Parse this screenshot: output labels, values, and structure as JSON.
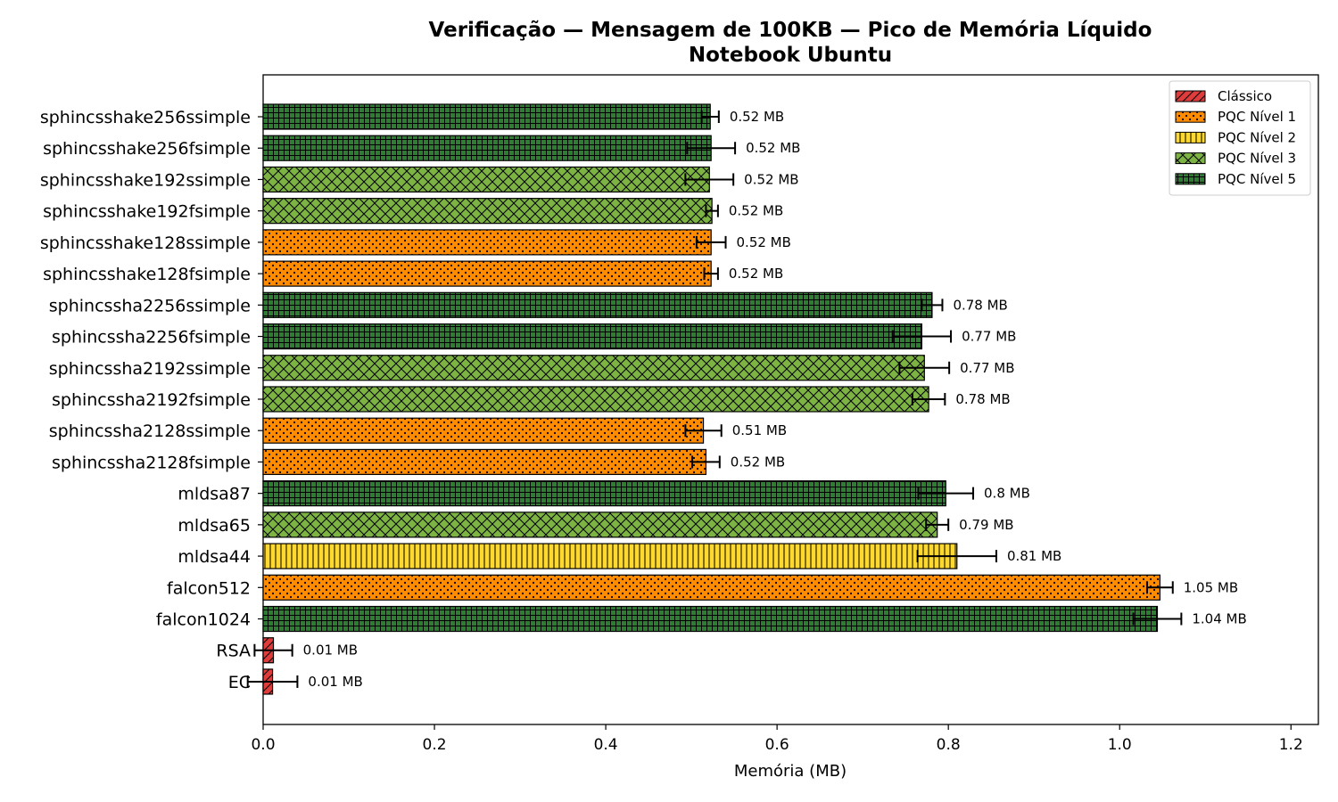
{
  "chart_data": {
    "type": "bar",
    "orientation": "horizontal",
    "title": "Verificação — Mensagem de 100KB — Pico de Memória Líquido",
    "subtitle": "Notebook Ubuntu",
    "xlabel": "Memória (MB)",
    "ylabel": "",
    "xlim": [
      0,
      1.232
    ],
    "xticks": [
      "0.0",
      "0.2",
      "0.4",
      "0.6",
      "0.8",
      "1.0",
      "1.2"
    ],
    "legend_placement": "top-right",
    "grid": false,
    "legend": [
      {
        "key": "classico",
        "label": "Clássico",
        "color": "#e03c3c",
        "pattern": "diagonal-hatch"
      },
      {
        "key": "n1",
        "label": "PQC Nível 1",
        "color": "#ff8c00",
        "pattern": "dots"
      },
      {
        "key": "n2",
        "label": "PQC Nível 2",
        "color": "#ffd92f",
        "pattern": "vertical-lines"
      },
      {
        "key": "n3",
        "label": "PQC Nível 3",
        "color": "#7cb342",
        "pattern": "crosshatch"
      },
      {
        "key": "n5",
        "label": "PQC Nível 5",
        "color": "#2e7d32",
        "pattern": "grid"
      }
    ],
    "bars": [
      {
        "category": "sphincsshake256ssimple",
        "value": 0.522,
        "error": 0.01,
        "level": "n5",
        "label": "0.52 MB"
      },
      {
        "category": "sphincsshake256fsimple",
        "value": 0.523,
        "error": 0.028,
        "level": "n5",
        "label": "0.52 MB"
      },
      {
        "category": "sphincsshake192ssimple",
        "value": 0.521,
        "error": 0.028,
        "level": "n3",
        "label": "0.52 MB"
      },
      {
        "category": "sphincsshake192fsimple",
        "value": 0.524,
        "error": 0.007,
        "level": "n3",
        "label": "0.52 MB"
      },
      {
        "category": "sphincsshake128ssimple",
        "value": 0.523,
        "error": 0.017,
        "level": "n1",
        "label": "0.52 MB"
      },
      {
        "category": "sphincsshake128fsimple",
        "value": 0.523,
        "error": 0.008,
        "level": "n1",
        "label": "0.52 MB"
      },
      {
        "category": "sphincssha2256ssimple",
        "value": 0.781,
        "error": 0.012,
        "level": "n5",
        "label": "0.78 MB"
      },
      {
        "category": "sphincssha2256fsimple",
        "value": 0.769,
        "error": 0.034,
        "level": "n5",
        "label": "0.77 MB"
      },
      {
        "category": "sphincssha2192ssimple",
        "value": 0.772,
        "error": 0.029,
        "level": "n3",
        "label": "0.77 MB"
      },
      {
        "category": "sphincssha2192fsimple",
        "value": 0.777,
        "error": 0.019,
        "level": "n3",
        "label": "0.78 MB"
      },
      {
        "category": "sphincssha2128ssimple",
        "value": 0.514,
        "error": 0.021,
        "level": "n1",
        "label": "0.51 MB"
      },
      {
        "category": "sphincssha2128fsimple",
        "value": 0.517,
        "error": 0.016,
        "level": "n1",
        "label": "0.52 MB"
      },
      {
        "category": "mldsa87",
        "value": 0.797,
        "error": 0.032,
        "level": "n5",
        "label": "0.8 MB"
      },
      {
        "category": "mldsa65",
        "value": 0.787,
        "error": 0.013,
        "level": "n3",
        "label": "0.79 MB"
      },
      {
        "category": "mldsa44",
        "value": 0.81,
        "error": 0.046,
        "level": "n2",
        "label": "0.81 MB"
      },
      {
        "category": "falcon512",
        "value": 1.047,
        "error": 0.015,
        "level": "n1",
        "label": "1.05 MB"
      },
      {
        "category": "falcon1024",
        "value": 1.044,
        "error": 0.028,
        "level": "n5",
        "label": "1.04 MB"
      },
      {
        "category": "RSA",
        "value": 0.012,
        "error": 0.022,
        "level": "classico",
        "label": "0.01 MB"
      },
      {
        "category": "EC",
        "value": 0.011,
        "error": 0.029,
        "level": "classico",
        "label": "0.01 MB"
      }
    ]
  }
}
